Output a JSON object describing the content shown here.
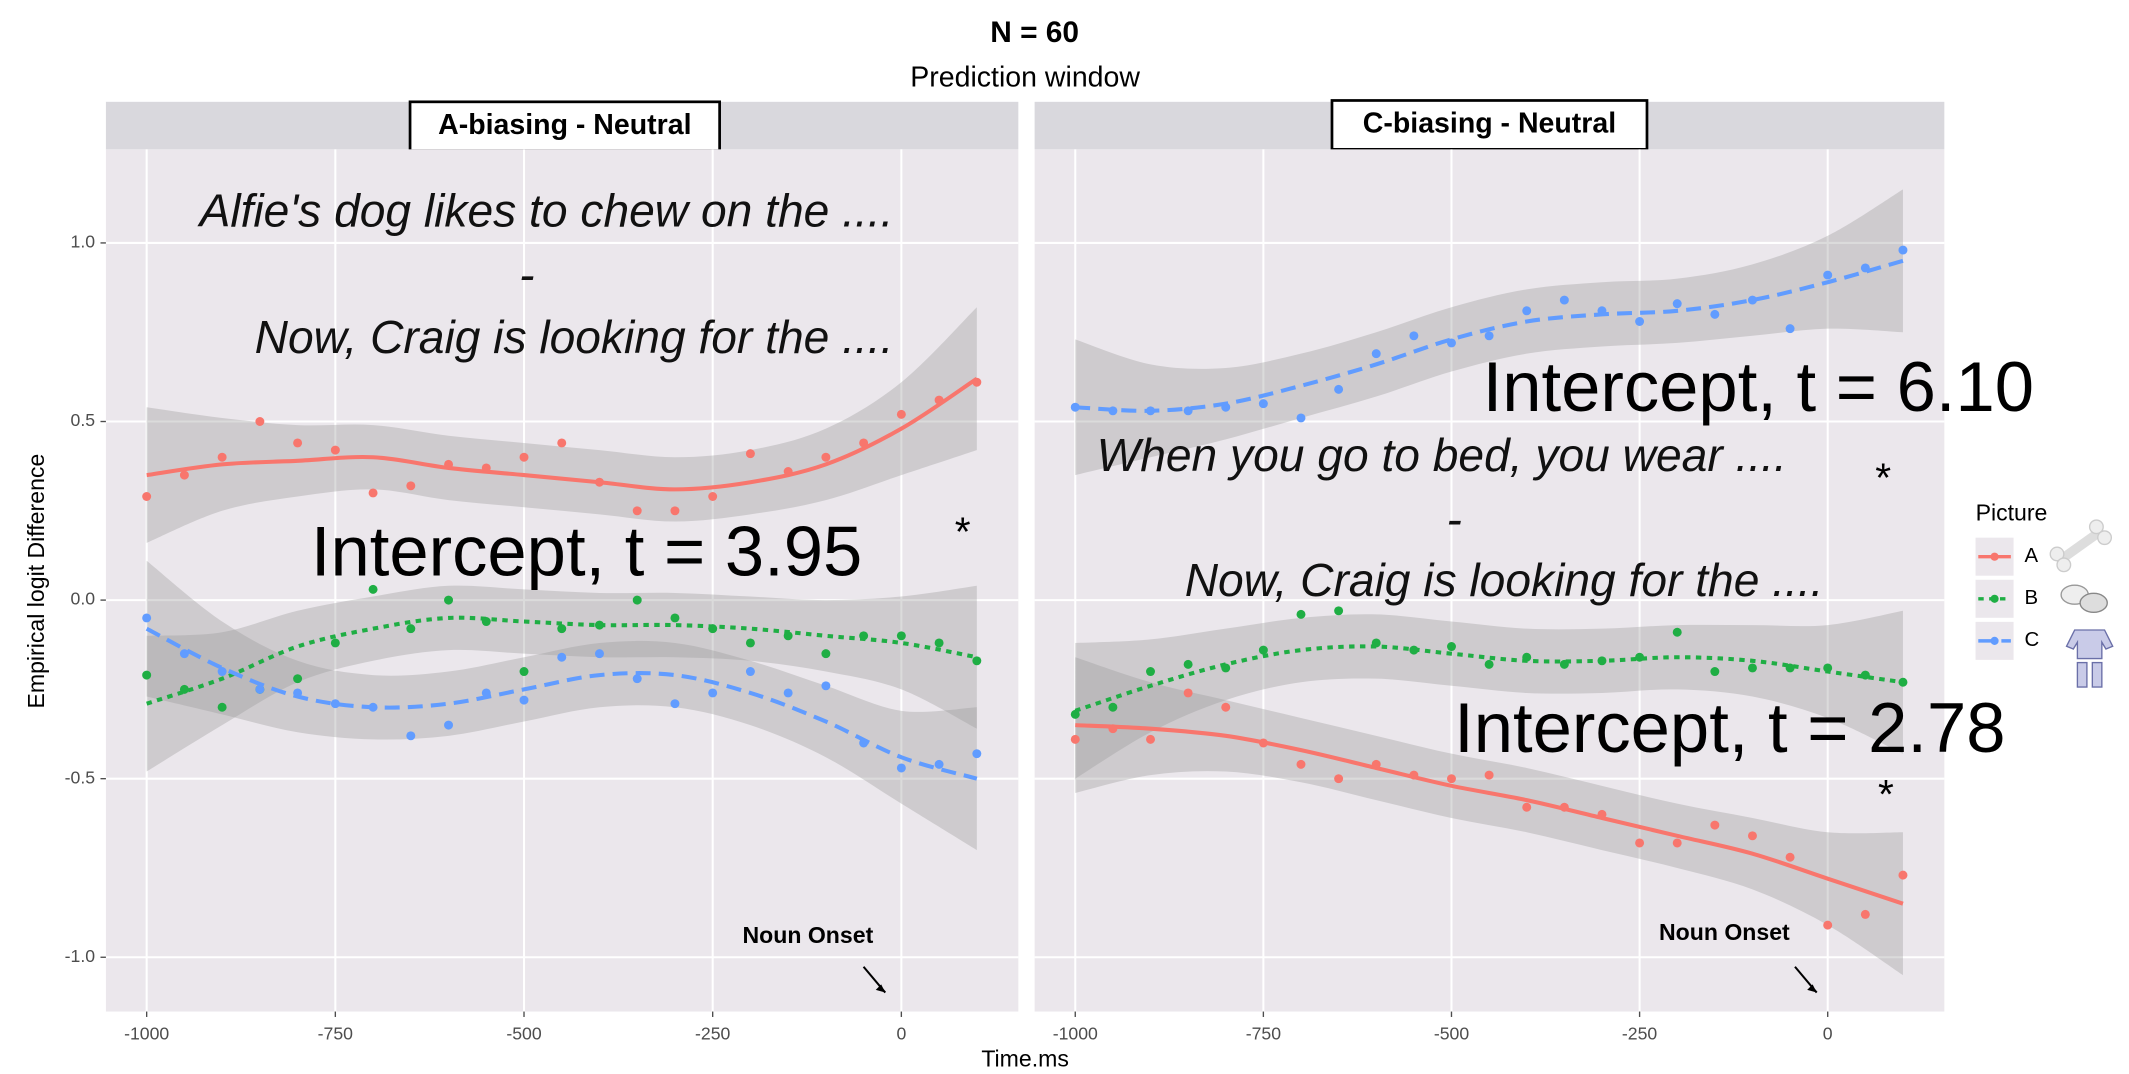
{
  "chart_data": {
    "type": "scatter",
    "title": "N = 60",
    "subtitle": "Prediction window",
    "xlabel": "Time.ms",
    "ylabel": "Empirical logit Difference",
    "legend_title": "Picture",
    "legend_position": "right",
    "grid": true,
    "xlim": [
      -1054,
      155
    ],
    "ylim": [
      -1.152,
      1.262
    ],
    "xticks": [
      -1000,
      -750,
      -500,
      -250,
      0
    ],
    "yticks": [
      {
        "value": -1,
        "label": "-1.0"
      },
      {
        "value": -0.5,
        "label": "-0.5"
      },
      {
        "value": 0,
        "label": "0.0"
      },
      {
        "value": 0.5,
        "label": "0.5"
      },
      {
        "value": 1,
        "label": "1.0"
      }
    ],
    "x": [
      -1000,
      -950,
      -900,
      -850,
      -800,
      -750,
      -700,
      -650,
      -600,
      -550,
      -500,
      -450,
      -400,
      -350,
      -300,
      -250,
      -200,
      -150,
      -100,
      -50,
      0,
      50,
      100
    ],
    "fit_x": [
      -1000,
      -900,
      -800,
      -700,
      -600,
      -500,
      -400,
      -300,
      -200,
      -100,
      0,
      100
    ],
    "panels": [
      {
        "title": "A-biasing - Neutral",
        "annotations": {
          "sentence_1": "Alfie's dog likes to chew on the ....",
          "separator": "-",
          "sentence_2": "Now, Craig is looking for the ....",
          "intercept": "Intercept, t = 3.95",
          "significance": "*",
          "onset_label": "Noun Onset"
        },
        "series": [
          {
            "name": "A",
            "color": "#f8766d",
            "linestyle": "solid",
            "values": [
              0.29,
              0.35,
              0.4,
              0.5,
              0.44,
              0.42,
              0.3,
              0.32,
              0.38,
              0.37,
              0.4,
              0.44,
              0.33,
              0.25,
              0.25,
              0.29,
              0.41,
              0.36,
              0.4,
              0.44,
              0.52,
              0.56,
              0.61
            ],
            "fit": [
              0.35,
              0.38,
              0.39,
              0.4,
              0.37,
              0.35,
              0.33,
              0.31,
              0.33,
              0.38,
              0.48,
              0.62
            ],
            "se": [
              0.19,
              0.13,
              0.1,
              0.09,
              0.09,
              0.09,
              0.09,
              0.09,
              0.09,
              0.1,
              0.13,
              0.2
            ]
          },
          {
            "name": "B",
            "color": "#1fae44",
            "linestyle": "dotted",
            "values": [
              -0.21,
              -0.25,
              -0.3,
              -0.25,
              -0.22,
              -0.12,
              0.03,
              -0.08,
              0.0,
              -0.06,
              -0.2,
              -0.08,
              -0.07,
              0.0,
              -0.05,
              -0.08,
              -0.12,
              -0.1,
              -0.15,
              -0.1,
              -0.1,
              -0.12,
              -0.17
            ],
            "fit": [
              -0.29,
              -0.22,
              -0.13,
              -0.08,
              -0.05,
              -0.06,
              -0.07,
              -0.07,
              -0.08,
              -0.1,
              -0.12,
              -0.16
            ],
            "se": [
              0.19,
              0.13,
              0.1,
              0.09,
              0.09,
              0.09,
              0.09,
              0.09,
              0.09,
              0.1,
              0.13,
              0.2
            ]
          },
          {
            "name": "C",
            "color": "#619cff",
            "linestyle": "dashed",
            "values": [
              -0.05,
              -0.15,
              -0.2,
              -0.25,
              -0.26,
              -0.29,
              -0.3,
              -0.38,
              -0.35,
              -0.26,
              -0.28,
              -0.16,
              -0.15,
              -0.22,
              -0.29,
              -0.26,
              -0.2,
              -0.26,
              -0.24,
              -0.4,
              -0.47,
              -0.46,
              -0.43
            ],
            "fit": [
              -0.08,
              -0.19,
              -0.27,
              -0.3,
              -0.29,
              -0.25,
              -0.21,
              -0.21,
              -0.26,
              -0.34,
              -0.44,
              -0.5
            ],
            "se": [
              0.19,
              0.13,
              0.1,
              0.09,
              0.09,
              0.09,
              0.09,
              0.09,
              0.09,
              0.1,
              0.13,
              0.2
            ]
          }
        ]
      },
      {
        "title": "C-biasing - Neutral",
        "annotations": {
          "intercept": "Intercept, t = 6.10",
          "sentence_1": "When you go to bed, you wear ....",
          "significance": "*",
          "separator": "-",
          "sentence_2": "Now, Craig is looking for the ....",
          "intercept_2": "Intercept, t = 2.78",
          "significance_2": "*",
          "onset_label": "Noun Onset"
        },
        "series": [
          {
            "name": "A",
            "color": "#f8766d",
            "linestyle": "solid",
            "values": [
              -0.39,
              -0.36,
              -0.39,
              -0.26,
              -0.3,
              -0.4,
              -0.46,
              -0.5,
              -0.46,
              -0.49,
              -0.5,
              -0.49,
              -0.58,
              -0.58,
              -0.6,
              -0.68,
              -0.68,
              -0.63,
              -0.66,
              -0.72,
              -0.91,
              -0.88,
              -0.77
            ],
            "fit": [
              -0.35,
              -0.36,
              -0.38,
              -0.42,
              -0.47,
              -0.52,
              -0.56,
              -0.61,
              -0.66,
              -0.71,
              -0.78,
              -0.85
            ],
            "se": [
              0.19,
              0.13,
              0.1,
              0.09,
              0.09,
              0.09,
              0.09,
              0.09,
              0.09,
              0.1,
              0.13,
              0.2
            ]
          },
          {
            "name": "B",
            "color": "#1fae44",
            "linestyle": "dotted",
            "values": [
              -0.32,
              -0.3,
              -0.2,
              -0.18,
              -0.19,
              -0.14,
              -0.04,
              -0.03,
              -0.12,
              -0.14,
              -0.13,
              -0.18,
              -0.16,
              -0.18,
              -0.17,
              -0.16,
              -0.09,
              -0.2,
              -0.19,
              -0.19,
              -0.19,
              -0.21,
              -0.23
            ],
            "fit": [
              -0.31,
              -0.24,
              -0.18,
              -0.14,
              -0.13,
              -0.15,
              -0.17,
              -0.17,
              -0.16,
              -0.17,
              -0.2,
              -0.23
            ],
            "se": [
              0.19,
              0.13,
              0.1,
              0.09,
              0.09,
              0.09,
              0.09,
              0.09,
              0.09,
              0.1,
              0.13,
              0.2
            ]
          },
          {
            "name": "C",
            "color": "#619cff",
            "linestyle": "dashed",
            "values": [
              0.54,
              0.53,
              0.53,
              0.53,
              0.54,
              0.55,
              0.51,
              0.59,
              0.69,
              0.74,
              0.72,
              0.74,
              0.81,
              0.84,
              0.81,
              0.78,
              0.83,
              0.8,
              0.84,
              0.76,
              0.91,
              0.93,
              0.98
            ],
            "fit": [
              0.54,
              0.53,
              0.55,
              0.6,
              0.66,
              0.73,
              0.78,
              0.8,
              0.81,
              0.84,
              0.89,
              0.95
            ],
            "se": [
              0.19,
              0.13,
              0.1,
              0.09,
              0.09,
              0.09,
              0.09,
              0.09,
              0.09,
              0.1,
              0.13,
              0.2
            ]
          }
        ]
      }
    ]
  }
}
